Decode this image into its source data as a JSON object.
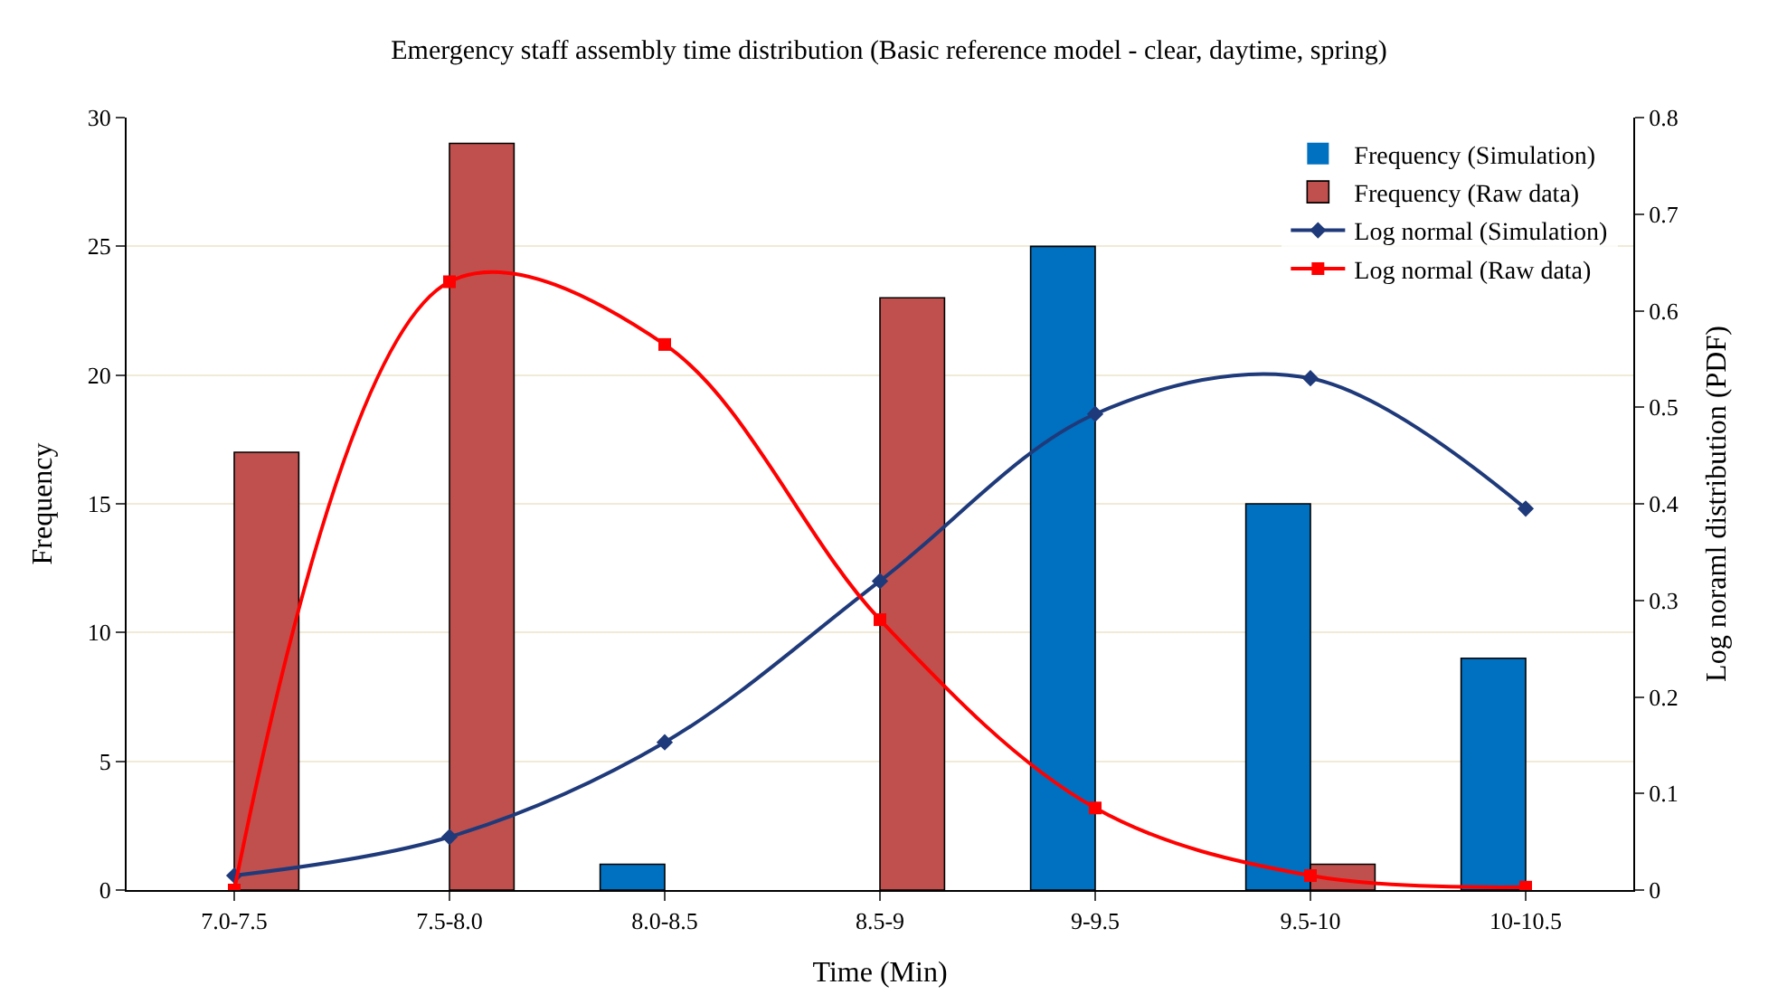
{
  "chart_data": {
    "type": "bar",
    "title": "Emergency staff assembly time distribution (Basic reference model - clear, daytime, spring)",
    "xlabel": "Time (Min)",
    "ylabel": "Frequency",
    "y2label": "Log noraml distribution (PDF)",
    "categories": [
      "7.0-7.5",
      "7.5-8.0",
      "8.0-8.5",
      "8.5-9",
      "9-9.5",
      "9.5-10",
      "10-10.5"
    ],
    "series": [
      {
        "name": "Frequency (Simulation)",
        "color": "#0070c0",
        "values": [
          0,
          0,
          1,
          0,
          25,
          15,
          9
        ]
      },
      {
        "name": "Frequency (Raw data)",
        "color": "#c0504d",
        "values": [
          17,
          29,
          0,
          23,
          0,
          1,
          0
        ]
      },
      {
        "name": "Log normal (Simulation)",
        "type": "line",
        "axis": "y2",
        "marker": "diamond",
        "color": "#1f3a7a",
        "values": [
          0.015,
          0.055,
          0.153,
          0.32,
          0.493,
          0.53,
          0.395
        ]
      },
      {
        "name": "Log normal (Raw data)",
        "type": "line",
        "axis": "y2",
        "marker": "square",
        "color": "#ff0000",
        "values": [
          0.0,
          0.63,
          0.565,
          0.28,
          0.085,
          0.015,
          0.003
        ]
      }
    ],
    "ylim": [
      0,
      30
    ],
    "yticks": [
      0,
      5,
      10,
      15,
      20,
      25,
      30
    ],
    "y2lim": [
      0,
      0.8
    ],
    "y2ticks": [
      0,
      0.1,
      0.2,
      0.3,
      0.4,
      0.5,
      0.6,
      0.7,
      0.8
    ],
    "grid": "y",
    "legend": "top right"
  }
}
